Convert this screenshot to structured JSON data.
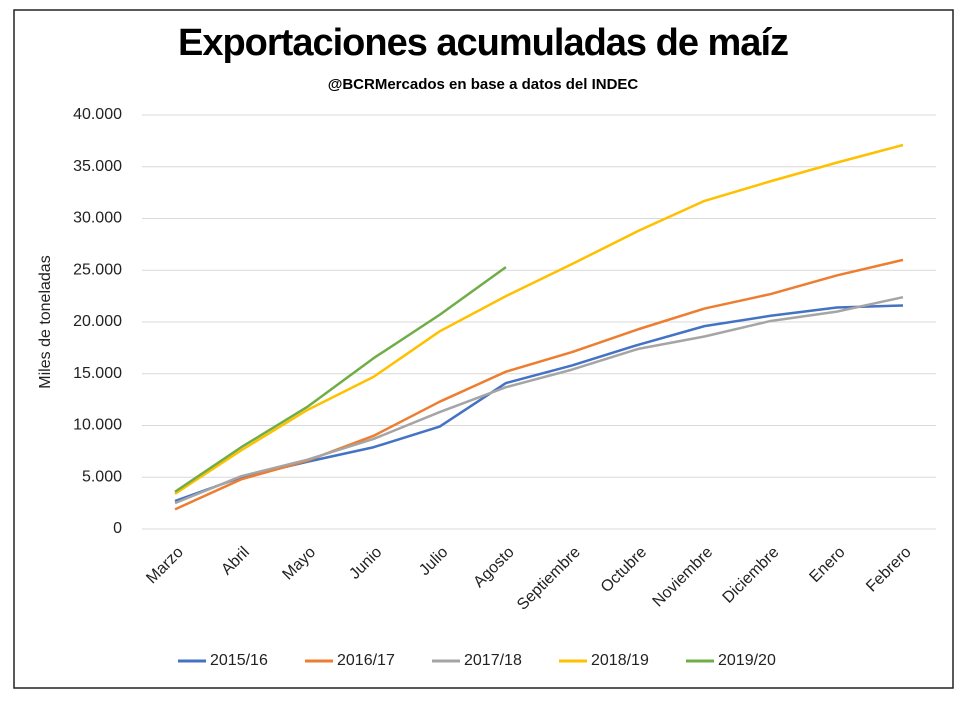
{
  "chart_data": {
    "type": "line",
    "title": "Exportaciones acumuladas de maíz",
    "subtitle": "@BCRMercados  en base a datos del INDEC",
    "y_label": "Miles de toneladas",
    "categories": [
      "Marzo",
      "Abril",
      "Mayo",
      "Junio",
      "Julio",
      "Agosto",
      "Septiembre",
      "Octubre",
      "Noviembre",
      "Diciembre",
      "Enero",
      "Febrero"
    ],
    "series": [
      {
        "name": "2015/16",
        "color": "#4472c4",
        "values": [
          2700,
          5000,
          6500,
          7900,
          9900,
          14100,
          15800,
          17800,
          19600,
          20600,
          21400,
          21600
        ]
      },
      {
        "name": "2016/17",
        "color": "#ed7d31",
        "values": [
          1900,
          4800,
          6600,
          9000,
          12300,
          15200,
          17100,
          19300,
          21300,
          22700,
          24500,
          26000
        ]
      },
      {
        "name": "2017/18",
        "color": "#a5a5a5",
        "values": [
          2500,
          5100,
          6700,
          8700,
          11300,
          13700,
          15400,
          17400,
          18600,
          20100,
          21000,
          22400
        ]
      },
      {
        "name": "2018/19",
        "color": "#ffc000",
        "values": [
          3400,
          7600,
          11500,
          14700,
          19100,
          22500,
          25600,
          28800,
          31700,
          33600,
          35400,
          37100
        ]
      },
      {
        "name": "2019/20",
        "color": "#70ad47",
        "values": [
          3600,
          7900,
          11800,
          16500,
          20700,
          25300,
          null,
          null,
          null,
          null,
          null,
          null
        ]
      }
    ],
    "ylim": [
      0,
      40000
    ],
    "yticks": [
      0,
      {
        "value": 5000,
        "label": "5.000"
      },
      {
        "value": 10000,
        "label": "10.000"
      },
      {
        "value": 15000,
        "label": "15.000"
      },
      {
        "value": 20000,
        "label": "20.000"
      },
      {
        "value": 25000,
        "label": "25.000"
      },
      {
        "value": 30000,
        "label": "30.000"
      },
      {
        "value": 35000,
        "label": "35.000"
      },
      {
        "value": 40000,
        "label": "40.000"
      }
    ],
    "grid": true,
    "legend": "bottom"
  }
}
